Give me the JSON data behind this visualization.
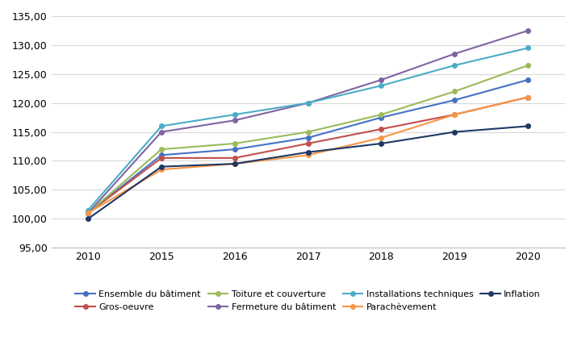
{
  "years": [
    2010,
    2015,
    2016,
    2017,
    2018,
    2019,
    2020
  ],
  "year_labels": [
    "2010",
    "2015",
    "2016",
    "2017",
    "2018",
    "2019",
    "2020"
  ],
  "series": {
    "Ensemble du bâtiment": {
      "values": [
        101.0,
        111.0,
        112.0,
        114.0,
        117.5,
        120.5,
        124.0
      ],
      "color": "#4472C4",
      "marker": "o",
      "order": 0
    },
    "Gros-oeuvre": {
      "values": [
        101.0,
        110.5,
        110.5,
        113.0,
        115.5,
        118.0,
        121.0
      ],
      "color": "#C0504D",
      "marker": "o",
      "order": 1
    },
    "Toiture et couverture": {
      "values": [
        101.0,
        112.0,
        113.0,
        115.0,
        118.0,
        122.0,
        126.5
      ],
      "color": "#9BBB59",
      "marker": "o",
      "order": 2
    },
    "Fermeture du bâtiment": {
      "values": [
        101.0,
        115.0,
        117.0,
        120.0,
        124.0,
        128.5,
        132.5
      ],
      "color": "#8064A2",
      "marker": "o",
      "order": 3
    },
    "Installations techniques": {
      "values": [
        101.5,
        116.0,
        118.0,
        120.0,
        123.0,
        126.5,
        129.5
      ],
      "color": "#4BACC6",
      "marker": "o",
      "order": 4
    },
    "Parachèvement": {
      "values": [
        101.0,
        108.5,
        109.5,
        111.0,
        114.0,
        118.0,
        121.0
      ],
      "color": "#F79646",
      "marker": "o",
      "order": 5
    },
    "Inflation": {
      "values": [
        100.0,
        109.0,
        109.5,
        111.5,
        113.0,
        115.0,
        116.0
      ],
      "color": "#1F3864",
      "marker": "o",
      "order": 6
    }
  },
  "ylim": [
    95.0,
    135.0
  ],
  "yticks": [
    95.0,
    100.0,
    105.0,
    110.0,
    115.0,
    120.0,
    125.0,
    130.0,
    135.0
  ],
  "background_color": "#FFFFFF",
  "grid_color": "#D9D9D9",
  "legend_row1": [
    "Ensemble du bâtiment",
    "Gros-oeuvre",
    "Toiture et couverture",
    "Fermeture du bâtiment"
  ],
  "legend_row2": [
    "Installations techniques",
    "Parachèvement",
    "Inflation"
  ],
  "legend_fontsize": 8,
  "tick_fontsize": 9
}
